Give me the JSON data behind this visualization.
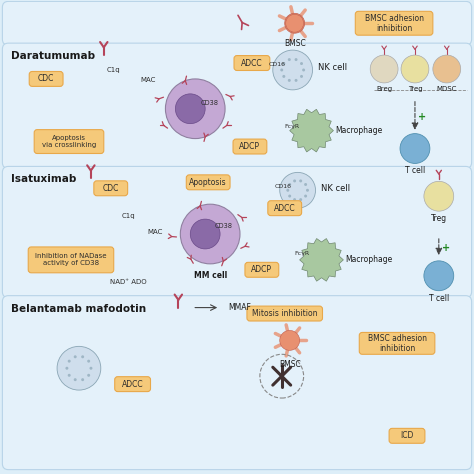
{
  "bg_color": "#ddeef8",
  "panel_bg": "#e4f1fa",
  "panel_edge": "#b8d4e8",
  "box_color": "#f5c97a",
  "box_edge": "#e8a84a",
  "ab_color": "#b5445a",
  "mm_cell_fc": "#c4a8d4",
  "mm_cell_ec": "#9080a0",
  "mm_nucleus_fc": "#8060a0",
  "mm_nucleus_ec": "#604080",
  "nk_cell_fc": "#c8d8e8",
  "nk_cell_ec": "#7090a0",
  "mac_fc": "#a8c8a0",
  "mac_ec": "#708870",
  "tcell_fc": "#7ab0d4",
  "tcell_ec": "#5090b0",
  "breg_fc": "#e0d8c0",
  "treg_fc": "#e8e0a0",
  "mdsc_fc": "#e8c090",
  "bmsc_fc": "#e89070",
  "bmsc_ec": "#c06050",
  "text_dark": "#1a1a1a",
  "text_mid": "#2d2d2d",
  "arrow_color": "#444444",
  "plus_color": "#228822",
  "dash_color": "#888888",
  "section1_label": "Daratumumab",
  "section2_label": "Isatuximab",
  "section3_label": "Belantamab mafodotin",
  "bmsc_label": "BMSC",
  "bmsc_box_label": "BMSC adhesion\ninhibition"
}
